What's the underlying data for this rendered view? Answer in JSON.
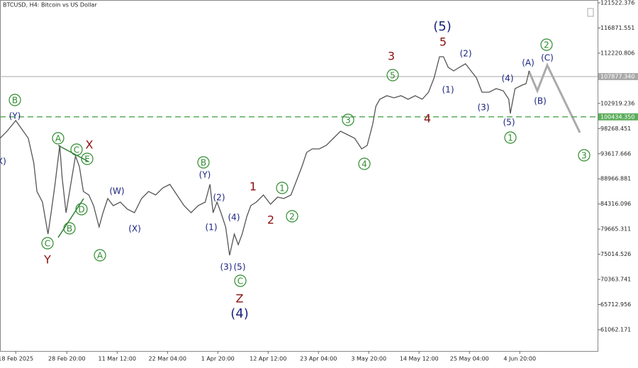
{
  "chart_data": {
    "type": "line",
    "title": "BTCUSD, H4:  Bitcoin vs US Dollar",
    "color": "#555555",
    "x": [
      0,
      9,
      20,
      36,
      43,
      47,
      54,
      61,
      65,
      70,
      76,
      79,
      84,
      90,
      96,
      101,
      106,
      113,
      119,
      126,
      131,
      137,
      144,
      153,
      162,
      171,
      180,
      189,
      198,
      207,
      216,
      225,
      234,
      243,
      252,
      261,
      267,
      271,
      276,
      281,
      287,
      292,
      298,
      303,
      308,
      314,
      319,
      326,
      335,
      344,
      353,
      361,
      370,
      377,
      384,
      390,
      397,
      406,
      415,
      424,
      433,
      442,
      451,
      460,
      467,
      474,
      478,
      483,
      492,
      501,
      510,
      519,
      528,
      537,
      545,
      552,
      559,
      564,
      570,
      577,
      584,
      592,
      599,
      606,
      613,
      622,
      631,
      640,
      647,
      649,
      655,
      664,
      669,
      673
    ],
    "values": [
      96473,
      97784,
      99751,
      96473,
      91882,
      86636,
      84669,
      78757,
      82702,
      87948,
      95161,
      89259,
      82702,
      87948,
      93194,
      91227,
      86636,
      85981,
      84013,
      80079,
      82702,
      85325,
      84013,
      84669,
      83358,
      82702,
      85325,
      86636,
      85981,
      87292,
      87948,
      85981,
      84013,
      82702,
      84013,
      84669,
      87948,
      82702,
      84669,
      82702,
      80079,
      74833,
      78757,
      76800,
      78757,
      82046,
      84013,
      84669,
      85981,
      84276,
      85587,
      85325,
      85981,
      88604,
      91227,
      93850,
      94505,
      94505,
      95161,
      96473,
      97784,
      97128,
      96473,
      94505,
      95161,
      99096,
      102374,
      103686,
      104342,
      103948,
      104342,
      103686,
      104342,
      103686,
      104997,
      107620,
      111555,
      111555,
      109588,
      108932,
      109588,
      110243,
      108932,
      107620,
      104997,
      104997,
      105653,
      105260,
      103686,
      101063,
      105653,
      106309,
      106571,
      108932
    ],
    "xlim": [
      0,
      760
    ],
    "xticks": [
      {
        "value": 20,
        "label": "18 Feb 2025"
      },
      {
        "value": 85,
        "label": "28 Feb 20:00"
      },
      {
        "value": 149,
        "label": "11 Mar 12:00"
      },
      {
        "value": 213,
        "label": "22 Mar 04:00"
      },
      {
        "value": 277,
        "label": "1 Apr 20:00"
      },
      {
        "value": 341,
        "label": "12 Apr 12:00"
      },
      {
        "value": 405,
        "label": "23 Apr 04:00"
      },
      {
        "value": 469,
        "label": "3 May 20:00"
      },
      {
        "value": 533,
        "label": "14 May 12:00"
      },
      {
        "value": 597,
        "label": "25 May 04:00"
      },
      {
        "value": 661,
        "label": "4 Jun 20:00"
      }
    ],
    "ylim": [
      57128,
      122047
    ],
    "yticks": [
      121522.376,
      116871.551,
      112220.806,
      102919.236,
      98268.451,
      93617.666,
      88966.881,
      84316.096,
      79665.311,
      75014.526,
      70363.741,
      65712.956,
      61062.171
    ],
    "levels": [
      {
        "value": 107877.34,
        "label": "107877.340",
        "color": "#aaaaaa"
      },
      {
        "value": 100434.35,
        "label": "100434.350",
        "color": "#5cad5c"
      }
    ],
    "annotations": [
      "B",
      "(Y)",
      "(X)",
      "A",
      "X",
      "C",
      "E",
      "D",
      "B",
      "C",
      "Y",
      "A",
      "(W)",
      "(X)",
      "B",
      "(Y)",
      "(2)",
      "(1)",
      "(4)",
      "1",
      "1",
      "2",
      "2",
      "(3)",
      "(5)",
      "C",
      "Z",
      "(4)",
      "3",
      "4",
      "3",
      "5",
      "4",
      "(5)",
      "5",
      "(2)",
      "(1)",
      "(3)",
      "(4)",
      "(5)",
      "1",
      "(A)",
      "(C)",
      "2",
      "(B)",
      "3"
    ]
  }
}
